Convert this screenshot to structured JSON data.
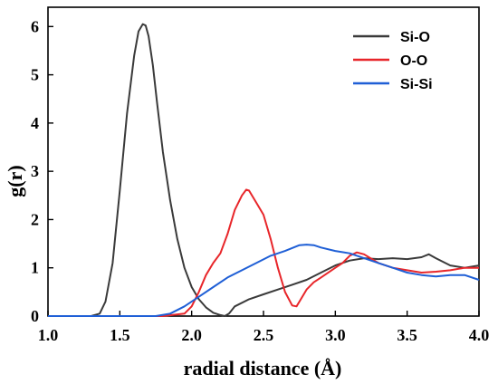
{
  "chart_data": {
    "type": "line",
    "title": "",
    "xlabel": "radial distance (Å)",
    "ylabel": "g(r)",
    "xlim": [
      1.0,
      4.0
    ],
    "ylim": [
      0,
      6.4
    ],
    "xticks": [
      1.0,
      1.5,
      2.0,
      2.5,
      3.0,
      3.5,
      4.0
    ],
    "xtick_labels": [
      "1.0",
      "1.5",
      "2.0",
      "2.5",
      "3.0",
      "3.5",
      "4.0"
    ],
    "yticks": [
      0,
      1,
      2,
      3,
      4,
      5,
      6
    ],
    "ytick_labels": [
      "0",
      "1",
      "2",
      "3",
      "4",
      "5",
      "6"
    ],
    "grid": false,
    "legend_position": "top-right",
    "series": [
      {
        "name": "Si-O",
        "color": "#3a3a3a",
        "x": [
          1.0,
          1.3,
          1.36,
          1.4,
          1.45,
          1.5,
          1.55,
          1.6,
          1.63,
          1.66,
          1.68,
          1.7,
          1.73,
          1.76,
          1.8,
          1.85,
          1.9,
          1.95,
          2.0,
          2.05,
          2.1,
          2.15,
          2.2,
          2.23,
          2.26,
          2.3,
          2.4,
          2.5,
          2.6,
          2.7,
          2.8,
          2.9,
          3.0,
          3.1,
          3.2,
          3.3,
          3.4,
          3.5,
          3.6,
          3.65,
          3.7,
          3.8,
          3.9,
          4.0
        ],
        "y": [
          0,
          0,
          0.05,
          0.3,
          1.1,
          2.6,
          4.2,
          5.4,
          5.9,
          6.05,
          6.02,
          5.8,
          5.2,
          4.4,
          3.4,
          2.4,
          1.6,
          1.0,
          0.6,
          0.35,
          0.18,
          0.07,
          0.02,
          0.0,
          0.05,
          0.2,
          0.35,
          0.45,
          0.55,
          0.65,
          0.75,
          0.9,
          1.05,
          1.15,
          1.2,
          1.18,
          1.2,
          1.18,
          1.22,
          1.28,
          1.2,
          1.05,
          1.0,
          1.05
        ]
      },
      {
        "name": "O-O",
        "color": "#e8262a",
        "x": [
          1.0,
          1.8,
          1.95,
          2.0,
          2.05,
          2.1,
          2.15,
          2.2,
          2.25,
          2.3,
          2.35,
          2.38,
          2.4,
          2.43,
          2.46,
          2.5,
          2.55,
          2.6,
          2.65,
          2.7,
          2.73,
          2.75,
          2.8,
          2.85,
          2.9,
          3.0,
          3.05,
          3.1,
          3.15,
          3.2,
          3.3,
          3.4,
          3.5,
          3.6,
          3.7,
          3.8,
          3.9,
          4.0
        ],
        "y": [
          0,
          0,
          0.05,
          0.2,
          0.5,
          0.85,
          1.1,
          1.3,
          1.7,
          2.2,
          2.5,
          2.62,
          2.6,
          2.45,
          2.3,
          2.1,
          1.6,
          1.0,
          0.5,
          0.22,
          0.2,
          0.3,
          0.55,
          0.7,
          0.8,
          1.0,
          1.1,
          1.25,
          1.32,
          1.28,
          1.1,
          1.0,
          0.95,
          0.9,
          0.92,
          0.95,
          1.0,
          1.0
        ]
      },
      {
        "name": "Si-Si",
        "color": "#1f5fd6",
        "x": [
          1.0,
          1.75,
          1.85,
          1.95,
          2.05,
          2.15,
          2.25,
          2.35,
          2.45,
          2.55,
          2.65,
          2.75,
          2.8,
          2.85,
          2.9,
          3.0,
          3.1,
          3.2,
          3.3,
          3.4,
          3.5,
          3.6,
          3.7,
          3.8,
          3.9,
          4.0
        ],
        "y": [
          0,
          0,
          0.05,
          0.2,
          0.4,
          0.6,
          0.8,
          0.95,
          1.1,
          1.25,
          1.35,
          1.47,
          1.48,
          1.47,
          1.42,
          1.35,
          1.3,
          1.2,
          1.1,
          1.0,
          0.9,
          0.85,
          0.82,
          0.85,
          0.85,
          0.75
        ]
      }
    ]
  }
}
